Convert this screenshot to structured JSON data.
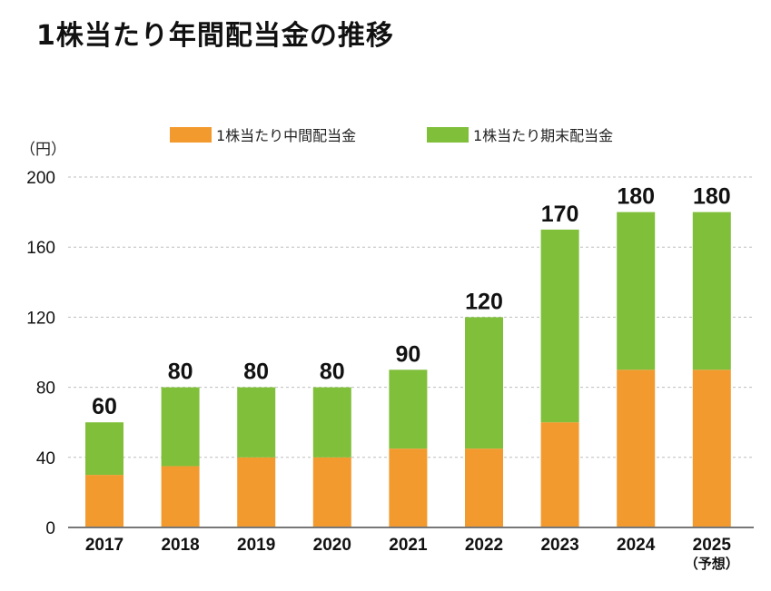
{
  "chart_data": {
    "type": "bar",
    "stacked": true,
    "title": "1株当たり年間配当金の推移",
    "ylabel": "（円）",
    "xlabel": "",
    "ylim": [
      0,
      200
    ],
    "yticks": [
      0,
      40,
      80,
      120,
      160,
      200
    ],
    "grid": true,
    "legend_position": "top-center",
    "categories": [
      "2017",
      "2018",
      "2019",
      "2020",
      "2021",
      "2022",
      "2023",
      "2024",
      "2025"
    ],
    "category_sublabels": [
      "",
      "",
      "",
      "",
      "",
      "",
      "",
      "",
      "（予想）"
    ],
    "series": [
      {
        "name": "1株当たり中間配当金",
        "color": "#F39A2F",
        "values": [
          30,
          35,
          40,
          40,
          45,
          45,
          60,
          90,
          90
        ]
      },
      {
        "name": "1株当たり期末配当金",
        "color": "#80BF3A",
        "values": [
          30,
          45,
          40,
          40,
          45,
          75,
          110,
          90,
          90
        ]
      }
    ],
    "totals": [
      60,
      80,
      80,
      80,
      90,
      120,
      170,
      180,
      180
    ]
  }
}
